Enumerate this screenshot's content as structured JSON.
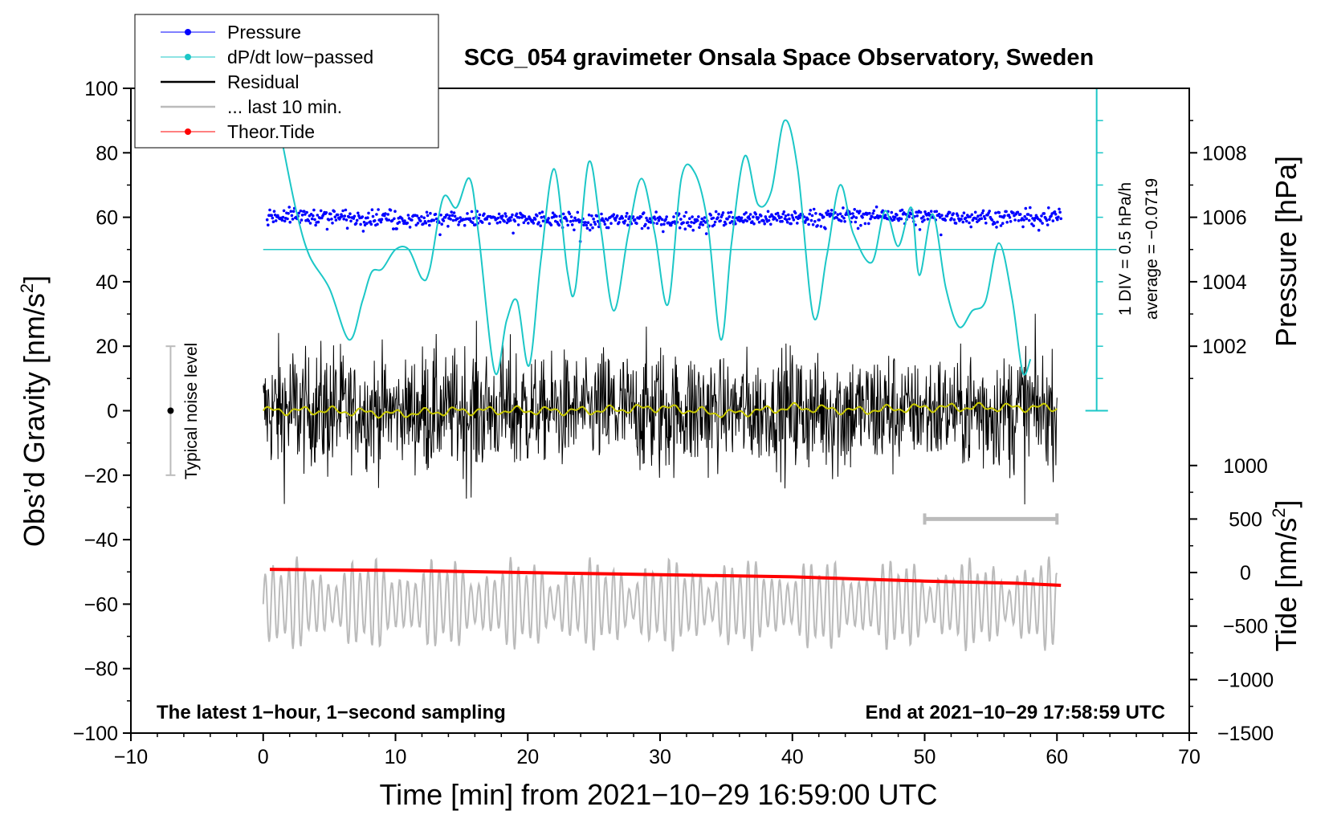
{
  "chart_data": {
    "type": "line",
    "title": "SCG_054 gravimeter Onsala Space Observatory, Sweden",
    "xlabel": "Time [min] from 2021−10−29 16:59:00 UTC",
    "ylabel_left": "Obs’d Gravity [nm/s",
    "ylabel_left_sup": "2",
    "ylabel_left_end": "]",
    "ylabel_right_pressure": "Pressure [hPa]",
    "ylabel_right_tide": "Tide [nm/s",
    "ylabel_right_tide_sup": "2",
    "ylabel_right_tide_end": "]",
    "xlim": [
      -10,
      70
    ],
    "ylim": [
      -100,
      100
    ],
    "pressure_lim": [
      1000,
      1010
    ],
    "tide_lim": [
      -1500,
      1000
    ],
    "x_ticks": [
      -10,
      0,
      10,
      20,
      30,
      40,
      50,
      60,
      70
    ],
    "x_tick_labels": [
      "−10",
      "0",
      "10",
      "20",
      "30",
      "40",
      "50",
      "60",
      "70"
    ],
    "y_ticks": [
      -100,
      -80,
      -60,
      -40,
      -20,
      0,
      20,
      40,
      60,
      80,
      100
    ],
    "y_tick_labels": [
      "−100",
      "−80",
      "−60",
      "−40",
      "−20",
      "0",
      "20",
      "40",
      "60",
      "80",
      "100"
    ],
    "pressure_ticks": [
      1002,
      1004,
      1006,
      1008
    ],
    "pressure_tick_labels": [
      "1002",
      "1004",
      "1006",
      "1008"
    ],
    "tide_ticks": [
      -1500,
      -1000,
      -500,
      0,
      500,
      1000
    ],
    "tide_tick_labels": [
      "−1500",
      "−1000",
      "−500",
      "0",
      "500",
      "1000"
    ],
    "legend": {
      "placement": "top-left",
      "entries": [
        {
          "label": "Pressure",
          "color": "#0000ff",
          "marker": true
        },
        {
          "label": "dP/dt low−passed",
          "color": "#1cc7c7",
          "marker": true
        },
        {
          "label": "Residual",
          "color": "#000000",
          "marker": false
        },
        {
          "label": "... last 10 min.",
          "color": "#bbbbbb",
          "marker": false
        },
        {
          "label": "Theor.Tide",
          "color": "#ff0000",
          "marker": true
        }
      ]
    },
    "annotations": {
      "bottom_left": "The latest 1−hour, 1−second sampling",
      "bottom_right": "End at 2021−10−29 17:58:59 UTC",
      "noise_label": "Typical noise level",
      "dpdt_scale": "1 DIV = 0.5 hPa/h",
      "dpdt_average": "average = −0.0719"
    },
    "noise_bar": {
      "x": -7,
      "center": 0,
      "half_range": 20
    },
    "last10_bar": {
      "x_start": 50,
      "x_end": 60,
      "tide_level": 500
    },
    "dpdt_scale_axis": {
      "x": 63,
      "y_bottom": 0,
      "y_top": 100,
      "divisions": 10,
      "zero_level": 50
    },
    "series": [
      {
        "name": "Pressure",
        "color": "#0000ff",
        "style": "dots",
        "axis": "pressure",
        "x_range": [
          0.3,
          60.3
        ],
        "mean_hPa": 1006.0,
        "scatter_hPa": 0.15,
        "drift": [
          [
            0,
            1006.05
          ],
          [
            15,
            1005.95
          ],
          [
            30,
            1005.9
          ],
          [
            45,
            1006.05
          ],
          [
            60,
            1006.0
          ]
        ]
      },
      {
        "name": "dP/dt low-passed",
        "color": "#1cc7c7",
        "style": "line",
        "axis": "gravity_scale",
        "points": [
          [
            1.5,
            82
          ],
          [
            2.5,
            62
          ],
          [
            3.5,
            48
          ],
          [
            5,
            38
          ],
          [
            6.5,
            22
          ],
          [
            7.5,
            34
          ],
          [
            8.2,
            43
          ],
          [
            9,
            44
          ],
          [
            10,
            50
          ],
          [
            11,
            50
          ],
          [
            12,
            41
          ],
          [
            12.6,
            44
          ],
          [
            13.6,
            66
          ],
          [
            14.6,
            63
          ],
          [
            15.6,
            72
          ],
          [
            16.3,
            54
          ],
          [
            17.5,
            12
          ],
          [
            18.4,
            28
          ],
          [
            19.2,
            34
          ],
          [
            20.1,
            14
          ],
          [
            21,
            47
          ],
          [
            22,
            75
          ],
          [
            23,
            43
          ],
          [
            23.6,
            38
          ],
          [
            24.6,
            77
          ],
          [
            25.5,
            57
          ],
          [
            26.5,
            31
          ],
          [
            27.6,
            55
          ],
          [
            28.6,
            72
          ],
          [
            29.6,
            55
          ],
          [
            30.6,
            33
          ],
          [
            31.6,
            72
          ],
          [
            32.6,
            74
          ],
          [
            33.6,
            58
          ],
          [
            34.6,
            22
          ],
          [
            35.4,
            52
          ],
          [
            36.4,
            79
          ],
          [
            37.4,
            64
          ],
          [
            38.4,
            68
          ],
          [
            39.4,
            90
          ],
          [
            40.4,
            75
          ],
          [
            41.6,
            29
          ],
          [
            42.6,
            48
          ],
          [
            43.6,
            70
          ],
          [
            44.6,
            55
          ],
          [
            46,
            46
          ],
          [
            47,
            62
          ],
          [
            48,
            51
          ],
          [
            49,
            63
          ],
          [
            49.6,
            42
          ],
          [
            50.6,
            61
          ],
          [
            51.6,
            38
          ],
          [
            52.6,
            26
          ],
          [
            53.6,
            31
          ],
          [
            54.6,
            34
          ],
          [
            55.6,
            52
          ],
          [
            56.6,
            35
          ],
          [
            57.4,
            12
          ],
          [
            58,
            16
          ]
        ]
      },
      {
        "name": "Residual",
        "color": "#000000",
        "style": "line",
        "axis": "gravity",
        "x_range": [
          0,
          60
        ],
        "amplitude_nm_s2": 30,
        "mean_nm_s2": 0
      },
      {
        "name": "Residual (smoothed)",
        "color": "#c8c800",
        "style": "line",
        "axis": "gravity",
        "points": [
          [
            0,
            0
          ],
          [
            5,
            0
          ],
          [
            10,
            -1
          ],
          [
            15,
            0
          ],
          [
            20,
            0
          ],
          [
            25,
            0
          ],
          [
            30,
            1
          ],
          [
            35,
            -1
          ],
          [
            40,
            1
          ],
          [
            45,
            0
          ],
          [
            50,
            1
          ],
          [
            55,
            1
          ],
          [
            60,
            1
          ]
        ]
      },
      {
        "name": "... last 10 min.",
        "color": "#bbbbbb",
        "style": "line",
        "axis": "gravity",
        "x_range": [
          0,
          60
        ],
        "center_nm_s2": -60,
        "amplitude_nm_s2": 15
      },
      {
        "name": "Theor.Tide",
        "color": "#ff0000",
        "style": "line",
        "axis": "tide",
        "points": [
          [
            0.5,
            30
          ],
          [
            10,
            20
          ],
          [
            20,
            0
          ],
          [
            30,
            -20
          ],
          [
            40,
            -40
          ],
          [
            50,
            -80
          ],
          [
            57,
            -100
          ],
          [
            60.3,
            -120
          ]
        ]
      }
    ]
  }
}
